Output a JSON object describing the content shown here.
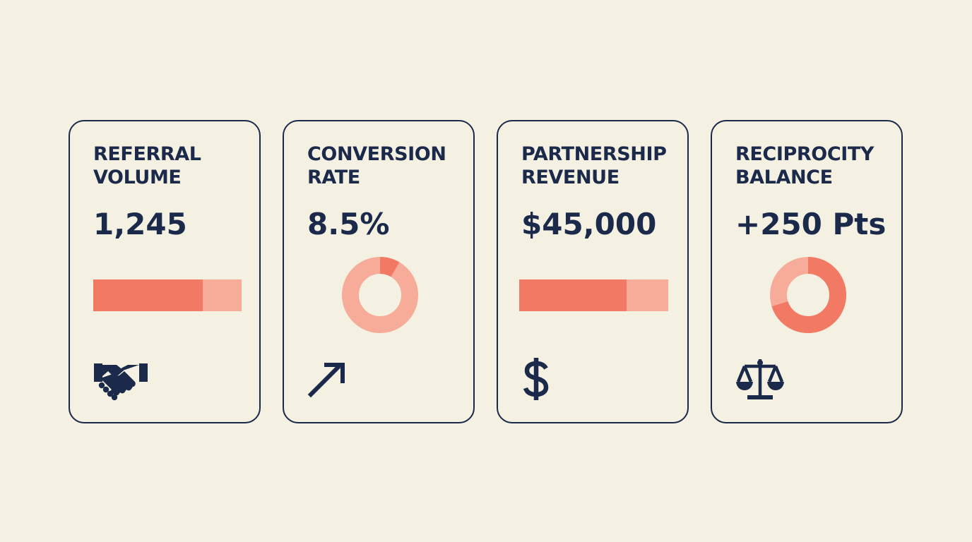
{
  "colors": {
    "background": "#f4f0e2",
    "ink": "#1b2a4a",
    "accent_strong": "#f27a64",
    "accent_light": "#f6ac98"
  },
  "cards": [
    {
      "title_line1": "REFERRAL",
      "title_line2": "VOLUME",
      "value": "1,245",
      "visual": "bar",
      "fill_fraction": 0.74,
      "icon": "handshake-icon"
    },
    {
      "title_line1": "CONVERSION",
      "title_line2": "RATE",
      "value": "8.5%",
      "visual": "donut",
      "fill_fraction": 0.085,
      "icon": "arrow-up-right-icon"
    },
    {
      "title_line1": "PARTNERSHIP",
      "title_line2": "REVENUE",
      "value": "$45,000",
      "visual": "bar",
      "fill_fraction": 0.72,
      "icon": "dollar-sign-icon"
    },
    {
      "title_line1": "RECIPROCITY",
      "title_line2": "BALANCE",
      "value": "+250 Pts",
      "visual": "donut",
      "fill_fraction": 0.7,
      "icon": "balance-scale-icon"
    }
  ]
}
